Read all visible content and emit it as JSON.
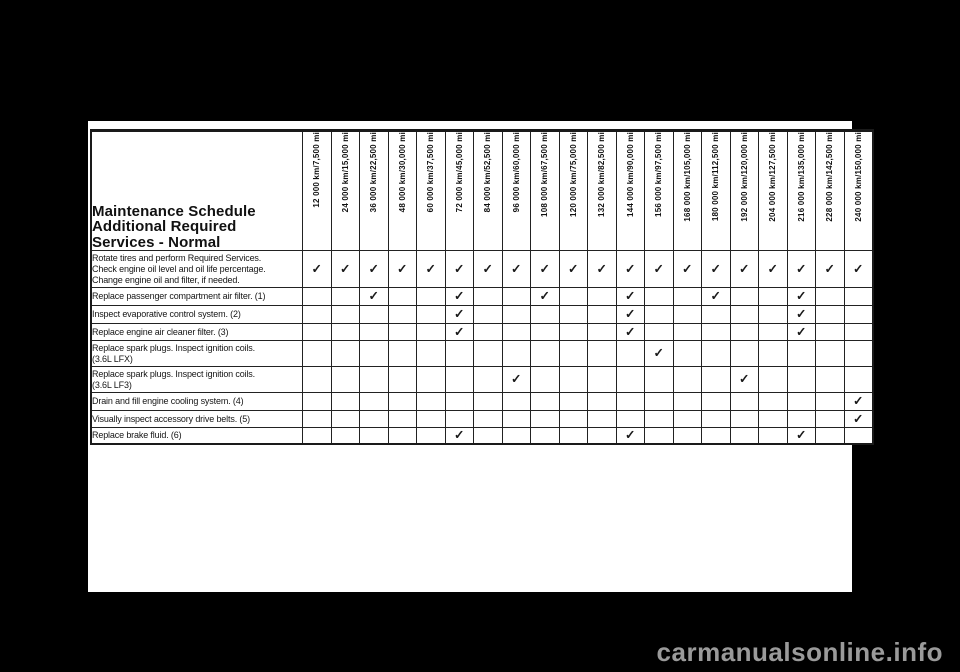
{
  "page": {
    "background_color": "#000000",
    "paper_color": "#ffffff",
    "text_color": "#111111",
    "border_color": "#222222",
    "watermark": "carmanualsonline.info",
    "watermark_color": "#9a9a9a"
  },
  "table": {
    "title_lines": [
      "Maintenance Schedule",
      "Additional Required",
      "Services - Normal"
    ],
    "check_glyph": "✓",
    "columns": [
      "12 000 km/7,500 mi",
      "24 000 km/15,000 mi",
      "36 000 km/22,500 mi",
      "48 000 km/30,000 mi",
      "60 000 km/37,500 mi",
      "72 000 km/45,000 mi",
      "84 000 km/52,500 mi",
      "96 000 km/60,000 mi",
      "108 000 km/67,500 mi",
      "120 000 km/75,000 mi",
      "132 000 km/82,500 mi",
      "144 000 km/90,000 mi",
      "156 000 km/97,500 mi",
      "168 000 km/105,000 mi",
      "180 000 km/112,500 mi",
      "192 000 km/120,000 mi",
      "204 000 km/127,500 mi",
      "216 000 km/135,000 mi",
      "228 000 km/142,500 mi",
      "240 000 km/150,000 mi"
    ],
    "rows": [
      {
        "label": "Rotate tires and perform Required Services.\nCheck engine oil level and oil life percentage.\nChange engine oil and filter, if needed.",
        "checks": [
          1,
          2,
          3,
          4,
          5,
          6,
          7,
          8,
          9,
          10,
          11,
          12,
          13,
          14,
          15,
          16,
          17,
          18,
          19,
          20
        ]
      },
      {
        "label": "Replace passenger compartment air filter. (1)",
        "checks": [
          3,
          6,
          9,
          12,
          15,
          18
        ]
      },
      {
        "label": "Inspect evaporative control system. (2)",
        "checks": [
          6,
          12,
          18
        ]
      },
      {
        "label": "Replace engine air cleaner filter. (3)",
        "checks": [
          6,
          12,
          18
        ]
      },
      {
        "label": "Replace spark plugs. Inspect ignition coils.\n(3.6L LFX)",
        "checks": [
          13
        ]
      },
      {
        "label": "Replace spark plugs. Inspect ignition coils.\n(3.6L LF3)",
        "checks": [
          8,
          16
        ]
      },
      {
        "label": "Drain and fill engine cooling system. (4)",
        "checks": [
          20
        ]
      },
      {
        "label": "Visually inspect accessory drive belts. (5)",
        "checks": [
          20
        ]
      },
      {
        "label": "Replace brake fluid. (6)",
        "checks": [
          6,
          12,
          18
        ]
      }
    ]
  }
}
